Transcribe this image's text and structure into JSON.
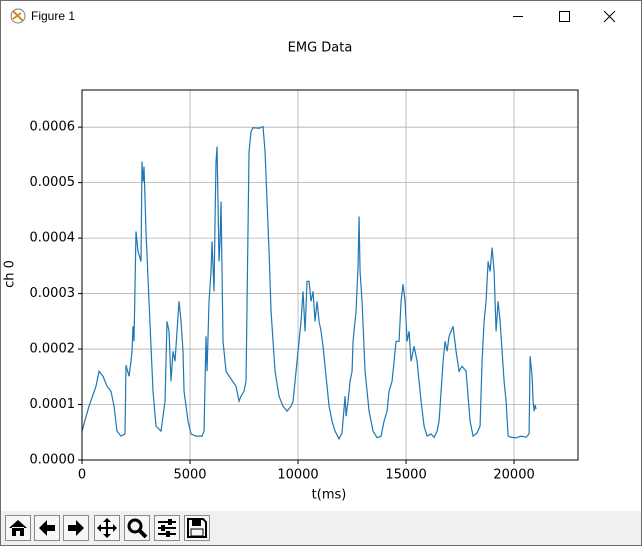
{
  "window": {
    "title": "Figure 1"
  },
  "chart_data": {
    "type": "line",
    "title": "EMG Data",
    "x_label": "t(ms)",
    "y_label": "ch 0",
    "xlim": [
      0,
      22960
    ],
    "ylim": [
      0,
      0.000667
    ],
    "xticks": [
      0,
      5000,
      10000,
      15000,
      20000
    ],
    "yticks": [
      {
        "value": 0,
        "label": "0.0000"
      },
      {
        "value": 0.0001,
        "label": "0.0001"
      },
      {
        "value": 0.0002,
        "label": "0.0002"
      },
      {
        "value": 0.0003,
        "label": "0.0003"
      },
      {
        "value": 0.0004,
        "label": "0.0004"
      },
      {
        "value": 0.0005,
        "label": "0.0005"
      },
      {
        "value": 0.0006,
        "label": "0.0006"
      }
    ],
    "grid": true,
    "x": [
      0,
      324,
      648,
      787,
      972,
      1158,
      1343,
      1482,
      1621,
      1806,
      1991,
      2037,
      2176,
      2269,
      2315,
      2361,
      2408,
      2500,
      2593,
      2732,
      2778,
      2824,
      2871,
      2963,
      3102,
      3287,
      3426,
      3658,
      3843,
      3936,
      4028,
      4121,
      4213,
      4306,
      4399,
      4491,
      4584,
      4676,
      4723,
      4908,
      5047,
      5278,
      5556,
      5649,
      5741,
      5788,
      5880,
      5973,
      6019,
      6112,
      6158,
      6204,
      6251,
      6343,
      6389,
      6436,
      6528,
      6667,
      6899,
      7130,
      7269,
      7362,
      7501,
      7593,
      7732,
      7825,
      7917,
      8195,
      8380,
      8473,
      8566,
      8658,
      8751,
      8936,
      9121,
      9306,
      9492,
      9677,
      9769,
      9955,
      10047,
      10140,
      10232,
      10325,
      10418,
      10510,
      10603,
      10695,
      10788,
      10880,
      10973,
      11066,
      11158,
      11297,
      11436,
      11575,
      11714,
      11899,
      12038,
      12177,
      12224,
      12316,
      12409,
      12501,
      12547,
      12686,
      12779,
      12825,
      12871,
      12964,
      13103,
      13288,
      13473,
      13659,
      13844,
      13983,
      14122,
      14214,
      14353,
      14446,
      14538,
      14677,
      14770,
      14862,
      14955,
      15048,
      15140,
      15233,
      15372,
      15511,
      15603,
      15696,
      15835,
      15974,
      16159,
      16298,
      16437,
      16530,
      16622,
      16715,
      16807,
      16900,
      16992,
      17085,
      17178,
      17316,
      17455,
      17594,
      17779,
      17964,
      18103,
      18289,
      18427,
      18520,
      18613,
      18705,
      18798,
      18890,
      18983,
      19076,
      19168,
      19261,
      19353,
      19446,
      19539,
      19631,
      19724,
      19863,
      20094,
      20326,
      20557,
      20696,
      20742,
      20835,
      20881,
      20928,
      20974,
      21020
    ],
    "series": [
      {
        "color": "#1f77b4",
        "values": [
          5.2e-05,
          9.7e-05,
          0.000133,
          0.00016,
          0.000151,
          0.000133,
          0.000124,
          9.7e-05,
          5.2e-05,
          4.3e-05,
          4.7e-05,
          0.000171,
          0.000151,
          0.000178,
          0.000196,
          0.000241,
          0.000214,
          0.000412,
          0.000376,
          0.000358,
          0.000538,
          0.000502,
          0.000529,
          0.000412,
          0.000286,
          0.000124,
          6.1e-05,
          5.2e-05,
          0.000106,
          0.00025,
          0.000232,
          0.000142,
          0.000196,
          0.000178,
          0.000232,
          0.000286,
          0.00025,
          0.000196,
          0.000124,
          7e-05,
          4.7e-05,
          4.3e-05,
          4.3e-05,
          5.2e-05,
          0.000223,
          0.00016,
          0.000286,
          0.00034,
          0.000394,
          0.000304,
          0.00043,
          0.000538,
          0.000565,
          0.000358,
          0.000394,
          0.000466,
          0.000214,
          0.00016,
          0.000146,
          0.000133,
          0.000106,
          0.000115,
          0.000124,
          0.000142,
          0.000556,
          0.000592,
          0.000599,
          0.000598,
          0.000601,
          0.000556,
          0.000466,
          0.000376,
          0.000268,
          0.00016,
          0.000115,
          9.7e-05,
          8.8e-05,
          9.7e-05,
          0.000106,
          0.000178,
          0.000214,
          0.00025,
          0.000304,
          0.000232,
          0.000322,
          0.000322,
          0.000286,
          0.000304,
          0.00025,
          0.000286,
          0.00025,
          0.000232,
          0.000205,
          0.000151,
          9.7e-05,
          7e-05,
          5.2e-05,
          3.8e-05,
          4.9e-05,
          0.000115,
          7.9e-05,
          0.000106,
          0.000142,
          0.00016,
          0.000214,
          0.000268,
          0.000349,
          0.000439,
          0.00034,
          0.000286,
          0.00016,
          8.8e-05,
          5.2e-05,
          4e-05,
          4.3e-05,
          7e-05,
          8.8e-05,
          0.000124,
          0.000142,
          0.000178,
          0.000214,
          0.000214,
          0.000286,
          0.000317,
          0.000286,
          0.000214,
          0.000232,
          0.000178,
          0.000205,
          0.000178,
          0.000142,
          0.000106,
          6.1e-05,
          4.3e-05,
          4.7e-05,
          4.1e-05,
          5.2e-05,
          7e-05,
          0.000124,
          0.000178,
          0.000214,
          0.000196,
          0.000223,
          0.000232,
          0.000241,
          0.000196,
          0.00016,
          0.000169,
          0.00016,
          7e-05,
          4.3e-05,
          4.9e-05,
          6.1e-05,
          0.000178,
          0.00025,
          0.000286,
          0.000358,
          0.00034,
          0.000383,
          0.00034,
          0.000232,
          0.000286,
          0.00025,
          0.000196,
          0.000142,
          0.000106,
          4.3e-05,
          4.1e-05,
          4e-05,
          4.3e-05,
          4.1e-05,
          4.7e-05,
          0.000187,
          0.000151,
          0.000106,
          8.8e-05,
          9.9e-05,
          9.2e-05
        ]
      }
    ]
  }
}
